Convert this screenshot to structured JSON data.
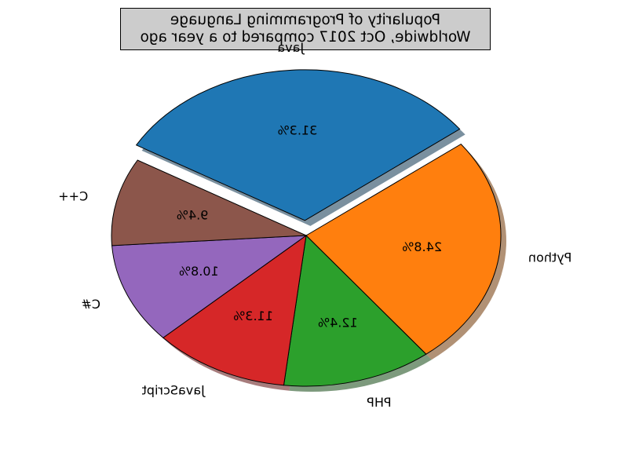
{
  "chart_data": {
    "type": "pie",
    "title_lines": [
      "Popularity of Programming Language",
      "Worldwide, Oct 2017 compared to a year ago"
    ],
    "categories": [
      "Java",
      "Python",
      "PHP",
      "JavaScript",
      "C#",
      "C++"
    ],
    "values": [
      31.3,
      24.8,
      12.4,
      11.3,
      10.8,
      9.4
    ],
    "percent_labels": [
      "31.3%",
      "24.8%",
      "12.4%",
      "11.3%",
      "10.8%",
      "9.4%"
    ],
    "colors": [
      "#1f77b4",
      "#ff7f0e",
      "#2ca02c",
      "#d62728",
      "#9467bd",
      "#8c564b"
    ],
    "exploded": [
      "Java"
    ],
    "shadow": true,
    "mirrored": true
  }
}
